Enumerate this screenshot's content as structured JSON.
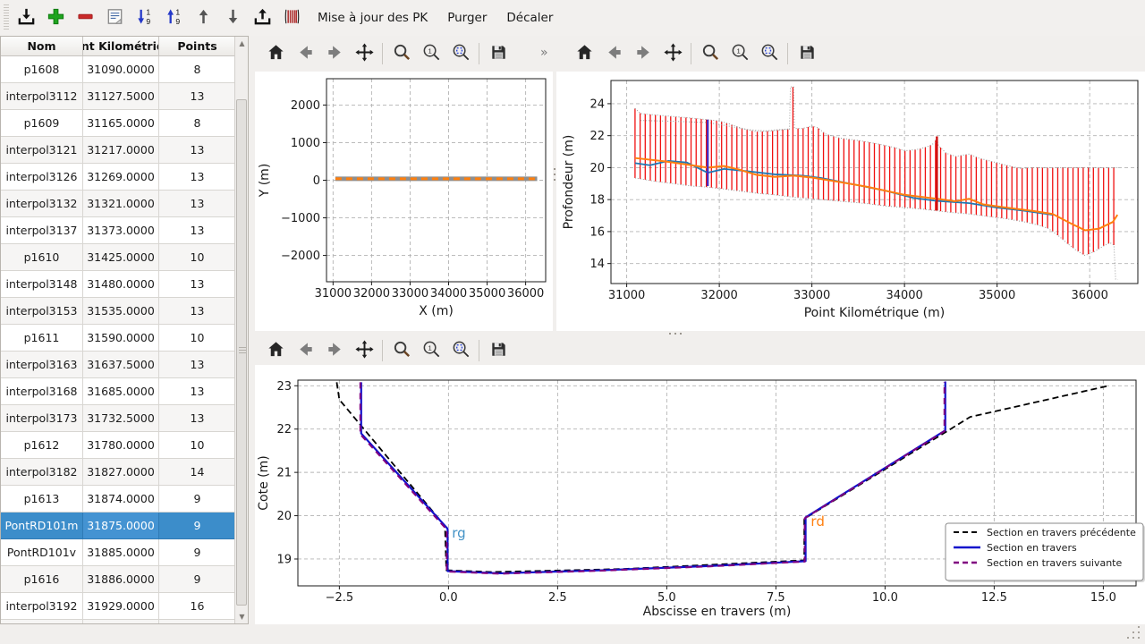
{
  "toolbar": {
    "buttons": [
      {
        "name": "import",
        "icon": "tray-arrow-down"
      },
      {
        "name": "add-section",
        "icon": "plus"
      },
      {
        "name": "remove-section",
        "icon": "minus"
      },
      {
        "name": "edit-note",
        "icon": "note"
      },
      {
        "name": "sort-ascending",
        "icon": "sort-asc"
      },
      {
        "name": "sort-descending",
        "icon": "sort-desc"
      },
      {
        "name": "move-up",
        "icon": "arrow-up"
      },
      {
        "name": "move-down",
        "icon": "arrow-down"
      },
      {
        "name": "export",
        "icon": "tray-arrow-up"
      },
      {
        "name": "sections",
        "icon": "sections"
      }
    ],
    "actions": [
      "Mise à jour des PK",
      "Purger",
      "Décaler"
    ]
  },
  "table": {
    "columns": [
      "Nom",
      "Point Kilométrique",
      "Points"
    ],
    "selected_index": 17,
    "rows": [
      [
        "p1608",
        "31090.0000",
        "8"
      ],
      [
        "interpol3112",
        "31127.5000",
        "13"
      ],
      [
        "p1609",
        "31165.0000",
        "8"
      ],
      [
        "interpol3121",
        "31217.0000",
        "13"
      ],
      [
        "interpol3126",
        "31269.0000",
        "13"
      ],
      [
        "interpol3132",
        "31321.0000",
        "13"
      ],
      [
        "interpol3137",
        "31373.0000",
        "13"
      ],
      [
        "p1610",
        "31425.0000",
        "10"
      ],
      [
        "interpol3148",
        "31480.0000",
        "13"
      ],
      [
        "interpol3153",
        "31535.0000",
        "13"
      ],
      [
        "p1611",
        "31590.0000",
        "10"
      ],
      [
        "interpol3163",
        "31637.5000",
        "13"
      ],
      [
        "interpol3168",
        "31685.0000",
        "13"
      ],
      [
        "interpol3173",
        "31732.5000",
        "13"
      ],
      [
        "p1612",
        "31780.0000",
        "10"
      ],
      [
        "interpol3182",
        "31827.0000",
        "14"
      ],
      [
        "p1613",
        "31874.0000",
        "9"
      ],
      [
        "PontRD101m",
        "31875.0000",
        "9"
      ],
      [
        "PontRD101v",
        "31885.0000",
        "9"
      ],
      [
        "p1616",
        "31886.0000",
        "9"
      ],
      [
        "interpol3192",
        "31929.0000",
        "16"
      ]
    ]
  },
  "plot_toolbars": [
    {
      "icons": [
        "home",
        "back",
        "forward",
        "pan",
        "zoom",
        "zoom-one",
        "zoom-region",
        "save"
      ],
      "overflow": "»"
    },
    {
      "icons": [
        "home",
        "back",
        "forward",
        "pan",
        "zoom",
        "zoom-one",
        "zoom-region",
        "save"
      ],
      "overflow": ""
    },
    {
      "icons": [
        "home",
        "back",
        "forward",
        "pan",
        "zoom",
        "zoom-one",
        "zoom-region",
        "save"
      ],
      "overflow": ""
    }
  ],
  "colors": {
    "selection": "#3c8dca",
    "mpl_blue": "#1f77b4",
    "mpl_orange": "#ff7f0e",
    "bar_red": "#f01010",
    "selected_section_purple": "#4b2ec0",
    "prev_black": "#000000",
    "current_blue": "#1111cc",
    "next_purple": "#800080"
  },
  "chart_data": [
    {
      "id": "plan-view",
      "type": "line",
      "title": "",
      "xlabel": "X (m)",
      "ylabel": "Y (m)",
      "xlim": [
        30830,
        36520
      ],
      "ylim": [
        -2700,
        2700
      ],
      "xticks": [
        [
          31000,
          "31000"
        ],
        [
          32000,
          "32000"
        ],
        [
          33000,
          "33000"
        ],
        [
          34000,
          "34000"
        ],
        [
          35000,
          "35000"
        ],
        [
          36000,
          "36000"
        ]
      ],
      "yticks": [
        [
          -2000,
          "−2000"
        ],
        [
          -1000,
          "−1000"
        ],
        [
          0,
          "0"
        ],
        [
          1000,
          "1000"
        ],
        [
          2000,
          "2000"
        ]
      ],
      "series": [
        {
          "name": "trace-outline",
          "color": "#8f8f8f",
          "width": 5,
          "dash": null,
          "points": [
            [
              31060,
              40
            ],
            [
              36300,
              40
            ]
          ]
        },
        {
          "name": "trace-riviere",
          "color": "#ff7f0e",
          "width": 3,
          "dash": "7 5",
          "points": [
            [
              31060,
              40
            ],
            [
              36300,
              40
            ]
          ]
        }
      ]
    },
    {
      "id": "profil-en-long",
      "type": "line",
      "title": "",
      "xlabel": "Point Kilométrique (m)",
      "ylabel": "Profondeur (m)",
      "xlim": [
        30830,
        36520
      ],
      "ylim": [
        12.75,
        25.45
      ],
      "xticks": [
        [
          31000,
          "31000"
        ],
        [
          32000,
          "32000"
        ],
        [
          33000,
          "33000"
        ],
        [
          34000,
          "34000"
        ],
        [
          35000,
          "35000"
        ],
        [
          36000,
          "36000"
        ]
      ],
      "yticks": [
        [
          14,
          "14"
        ],
        [
          16,
          "16"
        ],
        [
          18,
          "18"
        ],
        [
          20,
          "20"
        ],
        [
          22,
          "22"
        ],
        [
          24,
          "24"
        ]
      ],
      "bars": {
        "x0": 31090,
        "x1": 36295,
        "step": 55,
        "color": "#f01010",
        "width": 1.3,
        "outline_color": "#9b9b9b",
        "outline_dash": "1 2",
        "top": [
          [
            31090,
            23.7
          ],
          [
            31150,
            23.38
          ],
          [
            31300,
            23.3
          ],
          [
            31500,
            23.2
          ],
          [
            31700,
            23.1
          ],
          [
            31875,
            23.0
          ],
          [
            32000,
            22.92
          ],
          [
            32100,
            22.75
          ],
          [
            32250,
            22.45
          ],
          [
            32400,
            22.25
          ],
          [
            32550,
            22.28
          ],
          [
            32700,
            22.38
          ],
          [
            32758,
            22.4
          ],
          [
            32768,
            25.05
          ],
          [
            32802,
            25.05
          ],
          [
            32812,
            22.45
          ],
          [
            32900,
            22.45
          ],
          [
            33000,
            22.6
          ],
          [
            33060,
            22.5
          ],
          [
            33150,
            22.1
          ],
          [
            33300,
            21.85
          ],
          [
            33500,
            21.7
          ],
          [
            33700,
            21.5
          ],
          [
            33900,
            21.25
          ],
          [
            34000,
            21.05
          ],
          [
            34150,
            21.15
          ],
          [
            34250,
            21.32
          ],
          [
            34330,
            21.55
          ],
          [
            34345,
            21.98
          ],
          [
            34365,
            21.4
          ],
          [
            34450,
            20.9
          ],
          [
            34550,
            20.7
          ],
          [
            34700,
            20.85
          ],
          [
            34800,
            20.6
          ],
          [
            34900,
            20.45
          ],
          [
            35000,
            20.3
          ],
          [
            35100,
            20.15
          ],
          [
            35250,
            19.95
          ],
          [
            35400,
            20.0
          ],
          [
            36300,
            20.0
          ]
        ],
        "bottom": [
          [
            31090,
            19.35
          ],
          [
            31300,
            19.15
          ],
          [
            31500,
            19.0
          ],
          [
            31700,
            18.85
          ],
          [
            31875,
            18.78
          ],
          [
            32000,
            18.7
          ],
          [
            32200,
            18.55
          ],
          [
            32400,
            18.4
          ],
          [
            32600,
            18.3
          ],
          [
            32800,
            18.15
          ],
          [
            33000,
            18.05
          ],
          [
            33200,
            17.95
          ],
          [
            33400,
            17.85
          ],
          [
            33600,
            17.75
          ],
          [
            33800,
            17.6
          ],
          [
            34000,
            17.5
          ],
          [
            34200,
            17.4
          ],
          [
            34350,
            17.3
          ],
          [
            34500,
            17.2
          ],
          [
            34700,
            17.1
          ],
          [
            34900,
            16.95
          ],
          [
            35100,
            16.8
          ],
          [
            35300,
            16.6
          ],
          [
            35450,
            16.4
          ],
          [
            35550,
            16.2
          ],
          [
            35650,
            15.8
          ],
          [
            35750,
            15.3
          ],
          [
            35850,
            14.85
          ],
          [
            35950,
            14.5
          ],
          [
            36050,
            14.75
          ],
          [
            36150,
            15.1
          ],
          [
            36220,
            15.3
          ],
          [
            36262,
            15.15
          ],
          [
            36280,
            13.0
          ],
          [
            36300,
            13.0
          ]
        ]
      },
      "series": [
        {
          "name": "enveloppe-interieure",
          "color": "#9b9b9b",
          "width": 1,
          "dash": "1 2",
          "points": [
            [
              31150,
              22.95
            ],
            [
              31500,
              22.9
            ],
            [
              31875,
              22.82
            ],
            [
              32100,
              22.6
            ],
            [
              32300,
              22.38
            ],
            [
              32500,
              22.3
            ],
            [
              32620,
              22.37
            ],
            [
              32750,
              22.42
            ]
          ]
        },
        {
          "name": "ligne-bleue",
          "color": "#1f77b4",
          "width": 1.8,
          "dash": null,
          "points": [
            [
              31090,
              20.28
            ],
            [
              31250,
              20.15
            ],
            [
              31450,
              20.42
            ],
            [
              31650,
              20.32
            ],
            [
              31875,
              19.68
            ],
            [
              32050,
              19.92
            ],
            [
              32300,
              19.78
            ],
            [
              32600,
              19.58
            ],
            [
              32900,
              19.5
            ],
            [
              33100,
              19.35
            ],
            [
              33500,
              18.9
            ],
            [
              33800,
              18.55
            ],
            [
              34100,
              18.1
            ],
            [
              34350,
              17.92
            ],
            [
              34700,
              17.78
            ],
            [
              35000,
              17.5
            ],
            [
              35300,
              17.3
            ],
            [
              35600,
              17.05
            ]
          ]
        },
        {
          "name": "ligne-orange",
          "color": "#ff7f0e",
          "width": 2,
          "dash": null,
          "points": [
            [
              31090,
              20.6
            ],
            [
              31400,
              20.4
            ],
            [
              31700,
              20.15
            ],
            [
              31875,
              20.0
            ],
            [
              32050,
              20.1
            ],
            [
              32200,
              19.9
            ],
            [
              32400,
              19.55
            ],
            [
              32600,
              19.42
            ],
            [
              32800,
              19.5
            ],
            [
              33000,
              19.38
            ],
            [
              33300,
              19.1
            ],
            [
              33600,
              18.8
            ],
            [
              34000,
              18.3
            ],
            [
              34350,
              18.05
            ],
            [
              34550,
              17.9
            ],
            [
              34700,
              18.05
            ],
            [
              34850,
              17.7
            ],
            [
              35100,
              17.5
            ],
            [
              35400,
              17.28
            ],
            [
              35600,
              17.1
            ],
            [
              35800,
              16.5
            ],
            [
              35950,
              16.08
            ],
            [
              36100,
              16.18
            ],
            [
              36250,
              16.6
            ],
            [
              36300,
              17.05
            ]
          ]
        }
      ],
      "vlines": [
        {
          "name": "section-selectionnee-31875",
          "x": 31875,
          "y1": 18.85,
          "y2": 23.0,
          "color": "#4b2ec0",
          "width": 2.4
        },
        {
          "name": "pic-34350",
          "x": 34350,
          "y1": 17.32,
          "y2": 21.95,
          "color": "#cf0f0f",
          "width": 2.4
        }
      ]
    },
    {
      "id": "section-en-travers",
      "type": "line",
      "title": "",
      "xlabel": "Abscisse en travers (m)",
      "ylabel": "Cote (m)",
      "xlim": [
        -3.45,
        15.75
      ],
      "ylim": [
        18.38,
        23.13
      ],
      "xticks": [
        [
          -2.5,
          "−2.5"
        ],
        [
          0,
          "0.0"
        ],
        [
          2.5,
          "2.5"
        ],
        [
          5,
          "5.0"
        ],
        [
          7.5,
          "7.5"
        ],
        [
          10,
          "10.0"
        ],
        [
          12.5,
          "12.5"
        ],
        [
          15,
          "15.0"
        ]
      ],
      "yticks": [
        [
          19,
          "19"
        ],
        [
          20,
          "20"
        ],
        [
          21,
          "21"
        ],
        [
          22,
          "22"
        ],
        [
          23,
          "23"
        ]
      ],
      "series": [
        {
          "name": "section-precedente",
          "color": "#000000",
          "width": 1.8,
          "dash": "7 4",
          "points": [
            [
              -2.56,
              23.08
            ],
            [
              -2.5,
              22.68
            ],
            [
              -0.08,
              19.76
            ],
            [
              -0.05,
              18.74
            ],
            [
              1.0,
              18.7
            ],
            [
              4.0,
              18.77
            ],
            [
              8.15,
              18.97
            ],
            [
              8.15,
              19.93
            ],
            [
              11.5,
              22.0
            ],
            [
              11.95,
              22.28
            ],
            [
              15.12,
              23.0
            ]
          ]
        },
        {
          "name": "section-courante",
          "color": "#1111cc",
          "width": 2.2,
          "dash": null,
          "points": [
            [
              -2.0,
              23.08
            ],
            [
              -2.0,
              21.9
            ],
            [
              -0.02,
              19.7
            ],
            [
              -0.02,
              18.72
            ],
            [
              1.2,
              18.67
            ],
            [
              3.5,
              18.74
            ],
            [
              6.0,
              18.84
            ],
            [
              8.18,
              18.95
            ],
            [
              8.18,
              19.96
            ],
            [
              11.38,
              21.97
            ],
            [
              11.38,
              23.1
            ]
          ]
        },
        {
          "name": "section-suivante",
          "color": "#800080",
          "width": 2,
          "dash": "7 5",
          "points": [
            [
              -2.02,
              23.08
            ],
            [
              -2.02,
              21.88
            ],
            [
              -0.04,
              19.68
            ],
            [
              -0.04,
              18.71
            ],
            [
              1.2,
              18.66
            ],
            [
              3.5,
              18.73
            ],
            [
              6.0,
              18.83
            ],
            [
              8.16,
              18.94
            ],
            [
              8.16,
              19.94
            ],
            [
              11.36,
              21.95
            ],
            [
              11.36,
              23.08
            ]
          ]
        }
      ],
      "annotations": [
        {
          "x": 0.08,
          "y": 19.5,
          "text": "rg",
          "color": "#4292c6",
          "size": 15
        },
        {
          "x": 8.3,
          "y": 19.76,
          "text": "rd",
          "color": "#ff7f0e",
          "size": 15
        }
      ],
      "legend": {
        "entries": [
          {
            "label": "Section en travers précédente",
            "color": "#000000",
            "dash": "6 4",
            "width": 2
          },
          {
            "label": "Section en travers",
            "color": "#1111cc",
            "dash": null,
            "width": 2.4
          },
          {
            "label": "Section en travers suivante",
            "color": "#800080",
            "dash": "6 4",
            "width": 2.4
          }
        ]
      }
    }
  ]
}
